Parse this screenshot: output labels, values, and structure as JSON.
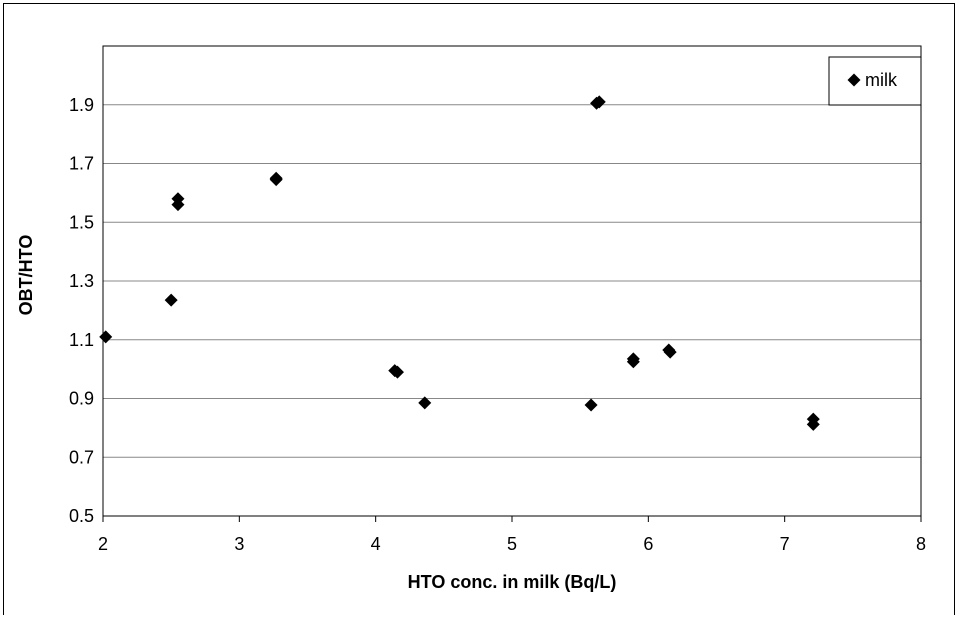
{
  "chart_data": {
    "type": "scatter",
    "title": "",
    "xlabel": "HTO conc. in milk (Bq/L)",
    "ylabel": "OBT/HTO",
    "xlim": [
      2,
      8
    ],
    "ylim": [
      0.5,
      2.1
    ],
    "x_ticks": [
      "2",
      "3",
      "4",
      "5",
      "6",
      "7",
      "8"
    ],
    "y_ticks": [
      "0.5",
      "0.7",
      "0.9",
      "1.1",
      "1.3",
      "1.5",
      "1.7",
      "1.9"
    ],
    "grid": "horizontal",
    "legend_position": "top-right",
    "marker": "diamond",
    "marker_color": "#000000",
    "series": [
      {
        "name": "milk",
        "points": [
          {
            "x": 2.02,
            "y": 1.11
          },
          {
            "x": 2.5,
            "y": 1.235
          },
          {
            "x": 2.55,
            "y": 1.58
          },
          {
            "x": 2.55,
            "y": 1.56
          },
          {
            "x": 3.27,
            "y": 1.65
          },
          {
            "x": 3.27,
            "y": 1.645
          },
          {
            "x": 4.14,
            "y": 0.995
          },
          {
            "x": 4.16,
            "y": 0.99
          },
          {
            "x": 4.36,
            "y": 0.885
          },
          {
            "x": 5.58,
            "y": 0.878
          },
          {
            "x": 5.62,
            "y": 1.905
          },
          {
            "x": 5.64,
            "y": 1.91
          },
          {
            "x": 5.89,
            "y": 1.035
          },
          {
            "x": 5.89,
            "y": 1.025
          },
          {
            "x": 6.15,
            "y": 1.065
          },
          {
            "x": 6.16,
            "y": 1.058
          },
          {
            "x": 7.21,
            "y": 0.83
          },
          {
            "x": 7.21,
            "y": 0.812
          }
        ]
      }
    ]
  }
}
